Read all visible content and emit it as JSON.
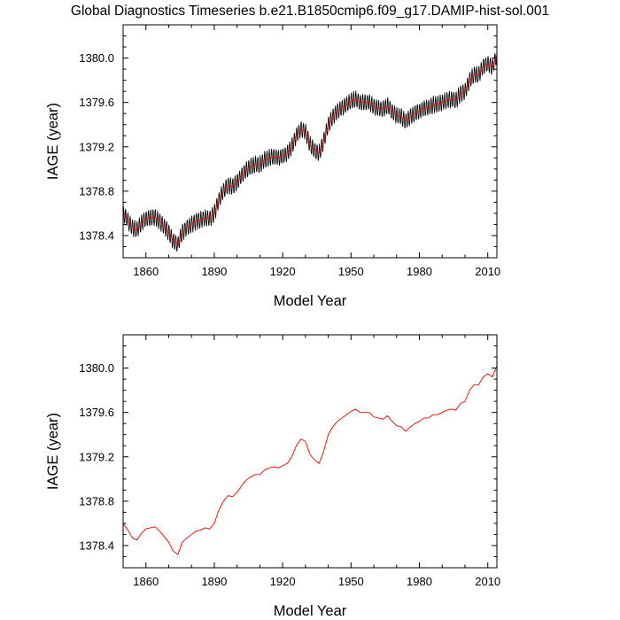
{
  "figure": {
    "title": "Global Diagnostics Timeseries b.e21.B1850cmip6.f09_g17.DAMIP-hist-sol.001"
  },
  "chart_data": [
    {
      "type": "line",
      "title": "",
      "xlabel": "Model Year",
      "ylabel": "IAGE (year)",
      "xlim": [
        1850,
        2014
      ],
      "ylim": [
        1378.2,
        1380.3
      ],
      "xticks": [
        1860,
        1890,
        1920,
        1950,
        1980,
        2010
      ],
      "yticks": [
        1378.4,
        1378.8,
        1379.2,
        1379.6,
        1380.0
      ],
      "ytick_labels": [
        "1378.4",
        "1378.8",
        "1379.2",
        "1379.6",
        "1380.0"
      ],
      "grid": false,
      "series": [
        {
          "color": "#000000",
          "kind": "monthly",
          "seasonal_amplitude": 0.07
        },
        {
          "color": "#ff0000",
          "kind": "annual",
          "x": [
            1850,
            1852,
            1854,
            1856,
            1858,
            1860,
            1862,
            1864,
            1866,
            1868,
            1870,
            1872,
            1874,
            1876,
            1878,
            1880,
            1882,
            1884,
            1886,
            1888,
            1890,
            1892,
            1894,
            1896,
            1898,
            1900,
            1902,
            1904,
            1906,
            1908,
            1910,
            1912,
            1914,
            1916,
            1918,
            1920,
            1922,
            1924,
            1926,
            1928,
            1930,
            1932,
            1934,
            1936,
            1938,
            1940,
            1942,
            1944,
            1946,
            1948,
            1950,
            1952,
            1954,
            1956,
            1958,
            1960,
            1962,
            1964,
            1966,
            1968,
            1970,
            1972,
            1974,
            1976,
            1978,
            1980,
            1982,
            1984,
            1986,
            1988,
            1990,
            1992,
            1994,
            1996,
            1998,
            2000,
            2002,
            2004,
            2006,
            2008,
            2010,
            2012,
            2014
          ],
          "y": [
            1378.6,
            1378.54,
            1378.47,
            1378.45,
            1378.51,
            1378.55,
            1378.56,
            1378.57,
            1378.53,
            1378.48,
            1378.43,
            1378.35,
            1378.32,
            1378.43,
            1378.47,
            1378.5,
            1378.53,
            1378.54,
            1378.56,
            1378.55,
            1378.6,
            1378.72,
            1378.8,
            1378.85,
            1378.84,
            1378.88,
            1378.94,
            1378.99,
            1379.02,
            1379.04,
            1379.04,
            1379.08,
            1379.1,
            1379.11,
            1379.1,
            1379.12,
            1379.14,
            1379.2,
            1379.3,
            1379.36,
            1379.34,
            1379.22,
            1379.17,
            1379.14,
            1379.25,
            1379.4,
            1379.47,
            1379.52,
            1379.55,
            1379.58,
            1379.61,
            1379.63,
            1379.6,
            1379.6,
            1379.6,
            1379.56,
            1379.55,
            1379.54,
            1379.57,
            1379.52,
            1379.48,
            1379.47,
            1379.43,
            1379.47,
            1379.5,
            1379.52,
            1379.55,
            1379.55,
            1379.58,
            1379.58,
            1379.6,
            1379.62,
            1379.63,
            1379.62,
            1379.68,
            1379.7,
            1379.8,
            1379.85,
            1379.85,
            1379.92,
            1379.95,
            1379.92,
            1380.02
          ]
        }
      ]
    },
    {
      "type": "line",
      "title": "",
      "xlabel": "Model Year",
      "ylabel": "IAGE (year)",
      "xlim": [
        1850,
        2014
      ],
      "ylim": [
        1378.2,
        1380.3
      ],
      "xticks": [
        1860,
        1890,
        1920,
        1950,
        1980,
        2010
      ],
      "yticks": [
        1378.4,
        1378.8,
        1379.2,
        1379.6,
        1380.0
      ],
      "ytick_labels": [
        "1378.4",
        "1378.8",
        "1379.2",
        "1379.6",
        "1380.0"
      ],
      "grid": false,
      "series": [
        {
          "color": "#ff0000",
          "kind": "annual",
          "x": [
            1850,
            1852,
            1854,
            1856,
            1858,
            1860,
            1862,
            1864,
            1866,
            1868,
            1870,
            1872,
            1874,
            1876,
            1878,
            1880,
            1882,
            1884,
            1886,
            1888,
            1890,
            1892,
            1894,
            1896,
            1898,
            1900,
            1902,
            1904,
            1906,
            1908,
            1910,
            1912,
            1914,
            1916,
            1918,
            1920,
            1922,
            1924,
            1926,
            1928,
            1930,
            1932,
            1934,
            1936,
            1938,
            1940,
            1942,
            1944,
            1946,
            1948,
            1950,
            1952,
            1954,
            1956,
            1958,
            1960,
            1962,
            1964,
            1966,
            1968,
            1970,
            1972,
            1974,
            1976,
            1978,
            1980,
            1982,
            1984,
            1986,
            1988,
            1990,
            1992,
            1994,
            1996,
            1998,
            2000,
            2002,
            2004,
            2006,
            2008,
            2010,
            2012,
            2014
          ],
          "y": [
            1378.6,
            1378.54,
            1378.47,
            1378.45,
            1378.51,
            1378.55,
            1378.56,
            1378.57,
            1378.53,
            1378.48,
            1378.43,
            1378.35,
            1378.32,
            1378.43,
            1378.47,
            1378.5,
            1378.53,
            1378.54,
            1378.56,
            1378.55,
            1378.6,
            1378.72,
            1378.8,
            1378.85,
            1378.84,
            1378.88,
            1378.94,
            1378.99,
            1379.02,
            1379.04,
            1379.04,
            1379.08,
            1379.1,
            1379.11,
            1379.1,
            1379.12,
            1379.14,
            1379.2,
            1379.3,
            1379.36,
            1379.34,
            1379.22,
            1379.17,
            1379.14,
            1379.25,
            1379.4,
            1379.47,
            1379.52,
            1379.55,
            1379.58,
            1379.61,
            1379.63,
            1379.6,
            1379.6,
            1379.6,
            1379.56,
            1379.55,
            1379.54,
            1379.57,
            1379.52,
            1379.48,
            1379.47,
            1379.43,
            1379.47,
            1379.5,
            1379.52,
            1379.55,
            1379.55,
            1379.58,
            1379.58,
            1379.6,
            1379.62,
            1379.63,
            1379.62,
            1379.68,
            1379.7,
            1379.8,
            1379.85,
            1379.85,
            1379.92,
            1379.95,
            1379.92,
            1380.02
          ]
        }
      ]
    }
  ]
}
